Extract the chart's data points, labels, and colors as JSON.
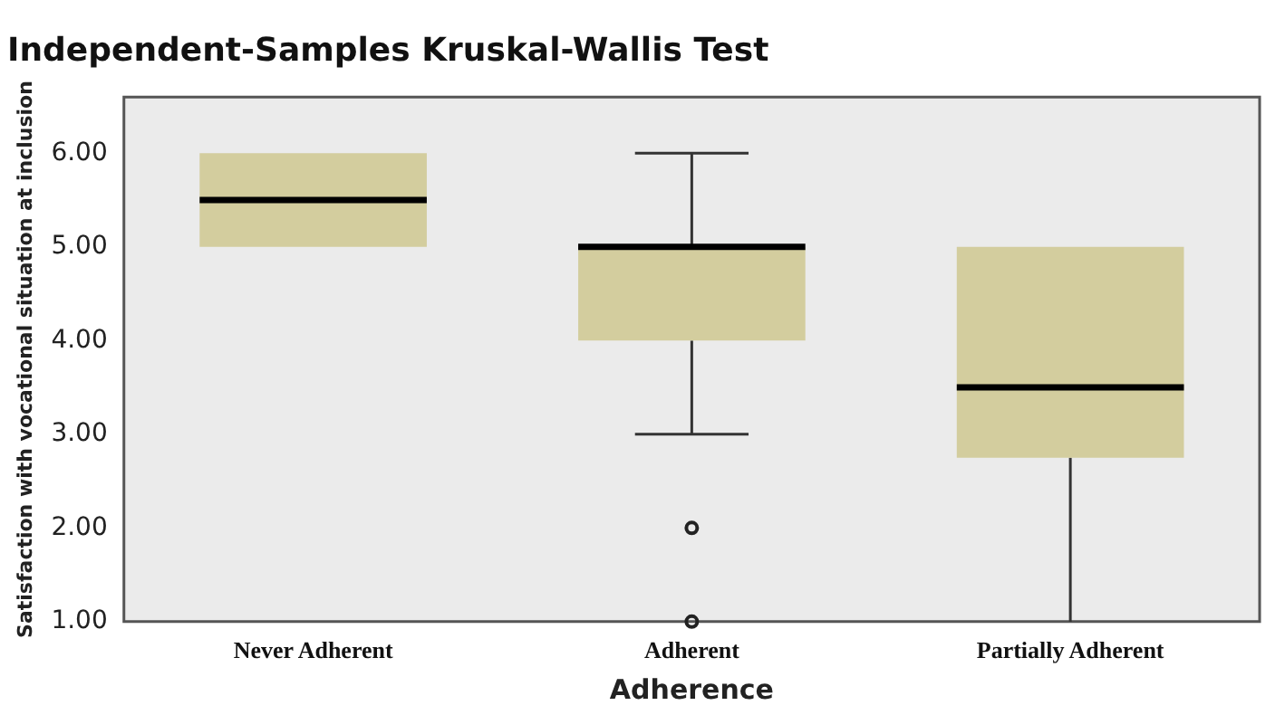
{
  "chart_data": {
    "type": "box",
    "title": "Independent-Samples Kruskal-Wallis Test",
    "xlabel": "Adherence",
    "ylabel": "Satisfaction with vocational situation at inclusion",
    "categories": [
      "Never Adherent",
      "Adherent",
      "Partially Adherent"
    ],
    "boxes": [
      {
        "low": 5,
        "q1": 5,
        "median": 5.5,
        "q3": 6,
        "high": 6
      },
      {
        "low": 3,
        "q1": 4,
        "median": 5,
        "q3": 5,
        "high": 6,
        "outliers": [
          2,
          1
        ]
      },
      {
        "low": 1,
        "q1": 2.75,
        "median": 3.5,
        "q3": 5,
        "high": 5
      }
    ],
    "color": "#d3cd9e",
    "ylim": [
      1,
      6.6
    ],
    "yticks": [
      {
        "value": 1,
        "label": "1.00"
      },
      {
        "value": 2,
        "label": "2.00"
      },
      {
        "value": 3,
        "label": "3.00"
      },
      {
        "value": 4,
        "label": "4.00"
      },
      {
        "value": 5,
        "label": "5.00"
      },
      {
        "value": 6,
        "label": "6.00"
      }
    ],
    "grid": false,
    "legend": false
  }
}
